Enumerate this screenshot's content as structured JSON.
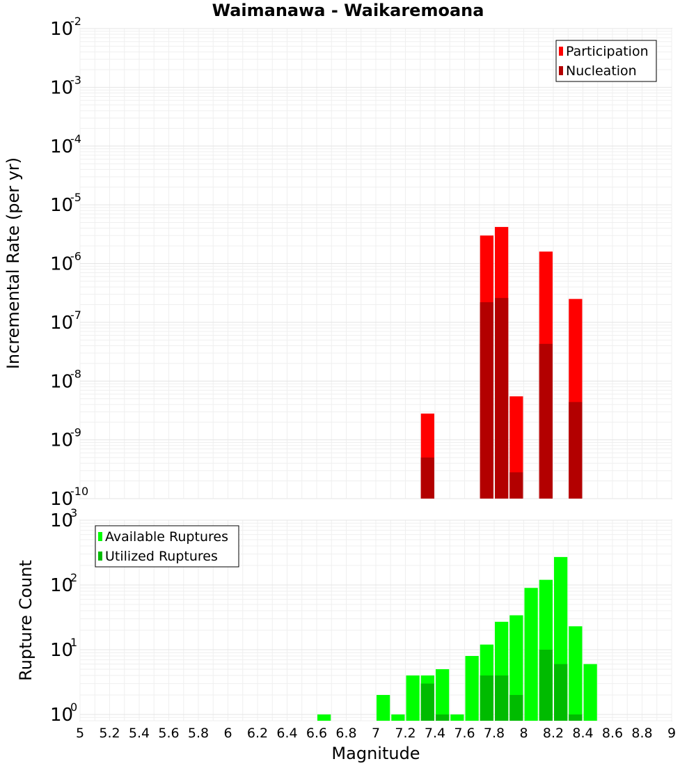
{
  "title": "Waimanawa - Waikaremoana",
  "chart_data": [
    {
      "type": "bar",
      "panel": "top",
      "title": "Waimanawa - Waikaremoana",
      "xlabel": "Magnitude",
      "ylabel": "Incremental Rate (per yr)",
      "yscale": "log",
      "ylim": [
        1e-10,
        0.01
      ],
      "xlim": [
        5,
        9
      ],
      "grid": true,
      "legend_position": "top-right",
      "x": [
        7.35,
        7.75,
        7.85,
        7.95,
        8.15,
        8.35
      ],
      "series": [
        {
          "name": "Participation",
          "color": "#ff0000",
          "values": [
            2.8e-09,
            3e-06,
            4.2e-06,
            5.5e-09,
            1.6e-06,
            2.5e-07
          ]
        },
        {
          "name": "Nucleation",
          "color": "#b30000",
          "values": [
            5e-10,
            2.2e-07,
            2.6e-07,
            2.8e-10,
            4.3e-08,
            4.4e-09
          ]
        }
      ],
      "yticks": [
        {
          "base": "10",
          "exp": "-2"
        },
        {
          "base": "10",
          "exp": "-3"
        },
        {
          "base": "10",
          "exp": "-4"
        },
        {
          "base": "10",
          "exp": "-5"
        },
        {
          "base": "10",
          "exp": "-6"
        },
        {
          "base": "10",
          "exp": "-7"
        },
        {
          "base": "10",
          "exp": "-8"
        },
        {
          "base": "10",
          "exp": "-9"
        },
        {
          "base": "10",
          "exp": "-10"
        }
      ]
    },
    {
      "type": "bar",
      "panel": "bottom",
      "xlabel": "Magnitude",
      "ylabel": "Rupture Count",
      "yscale": "log",
      "ylim": [
        0.8,
        1000
      ],
      "xlim": [
        5,
        9
      ],
      "grid": true,
      "legend_position": "top-left",
      "x": [
        6.65,
        7.05,
        7.15,
        7.25,
        7.35,
        7.45,
        7.55,
        7.65,
        7.75,
        7.85,
        7.95,
        8.05,
        8.15,
        8.25,
        8.35,
        8.45
      ],
      "series": [
        {
          "name": "Available Ruptures",
          "color": "#00ff00",
          "values": [
            1,
            2,
            1,
            4,
            4,
            5,
            1,
            8,
            12,
            27,
            34,
            90,
            120,
            270,
            23,
            6
          ]
        },
        {
          "name": "Utilized Ruptures",
          "color": "#00bb00",
          "values": [
            0,
            0,
            0,
            0,
            3,
            1,
            0,
            0,
            4,
            4,
            2,
            0,
            10,
            6,
            1,
            0
          ]
        }
      ],
      "yticks": [
        {
          "base": "10",
          "exp": "3"
        },
        {
          "base": "10",
          "exp": "2"
        },
        {
          "base": "10",
          "exp": "1"
        },
        {
          "base": "10",
          "exp": "0"
        }
      ]
    }
  ],
  "xticks": [
    "5",
    "5.2",
    "5.4",
    "5.6",
    "5.8",
    "6",
    "6.2",
    "6.4",
    "6.6",
    "6.8",
    "7",
    "7.2",
    "7.4",
    "7.6",
    "7.8",
    "8",
    "8.2",
    "8.4",
    "8.6",
    "8.8",
    "9"
  ]
}
